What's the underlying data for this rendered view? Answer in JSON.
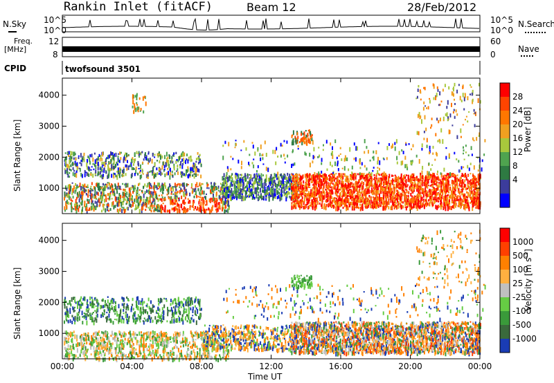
{
  "header": {
    "station": "Rankin Inlet (fitACF)",
    "beam": "Beam 12",
    "date": "28/Feb/2012"
  },
  "top_panels": {
    "nsky_label": "N.Sky",
    "nsearch_label": "N.Search",
    "nsky_ticks": [
      "10^5",
      "10^0"
    ],
    "nsearch_ticks": [
      "10^5",
      "10^0"
    ],
    "freq_label_1": "Freq.",
    "freq_label_2": "[MHz]",
    "freq_ticks": [
      "12",
      "8"
    ],
    "nave_label": "Nave",
    "nave_ticks": [
      "60",
      "0"
    ],
    "cpid_label": "CPID",
    "cpid_text": "twofsound 3501"
  },
  "chart_data": [
    {
      "type": "heatmap",
      "name": "power",
      "ylabel": "Slant Range [km]",
      "xlabel": "",
      "y_ticks": [
        "1000",
        "2000",
        "3000",
        "4000"
      ],
      "ylim": [
        180,
        4550
      ],
      "colorbar_label": "Power [dB]",
      "colorbar_ticks": [
        "28",
        "24",
        "20",
        "16",
        "12",
        "8",
        "4"
      ],
      "colors": [
        "#0000ff",
        "#3c3c9c",
        "#2e7a42",
        "#4fa34f",
        "#a8c83c",
        "#f0a020",
        "#ff7700",
        "#ff4400",
        "#ff0000"
      ]
    },
    {
      "type": "heatmap",
      "name": "velocity",
      "ylabel": "Slant Range [km]",
      "xlabel": "Time UT",
      "x_ticks": [
        "00:00",
        "04:00",
        "08:00",
        "12:00",
        "16:00",
        "20:00",
        "00:00"
      ],
      "y_ticks": [
        "1000",
        "2000",
        "3000",
        "4000"
      ],
      "ylim": [
        180,
        4550
      ],
      "colorbar_label": "Velocity [m s",
      "colorbar_unit_sup": "-1",
      "colorbar_unit_end": "]",
      "colorbar_ticks": [
        "1000",
        "500",
        "100",
        "25",
        "-25",
        "-100",
        "-500",
        "-1000"
      ],
      "colors": [
        "#1a3cb4",
        "#3a6a3c",
        "#3a9a3a",
        "#66cc44",
        "#c0c0c0",
        "#ffb040",
        "#ff8000",
        "#ff4000",
        "#ff0000"
      ]
    }
  ]
}
